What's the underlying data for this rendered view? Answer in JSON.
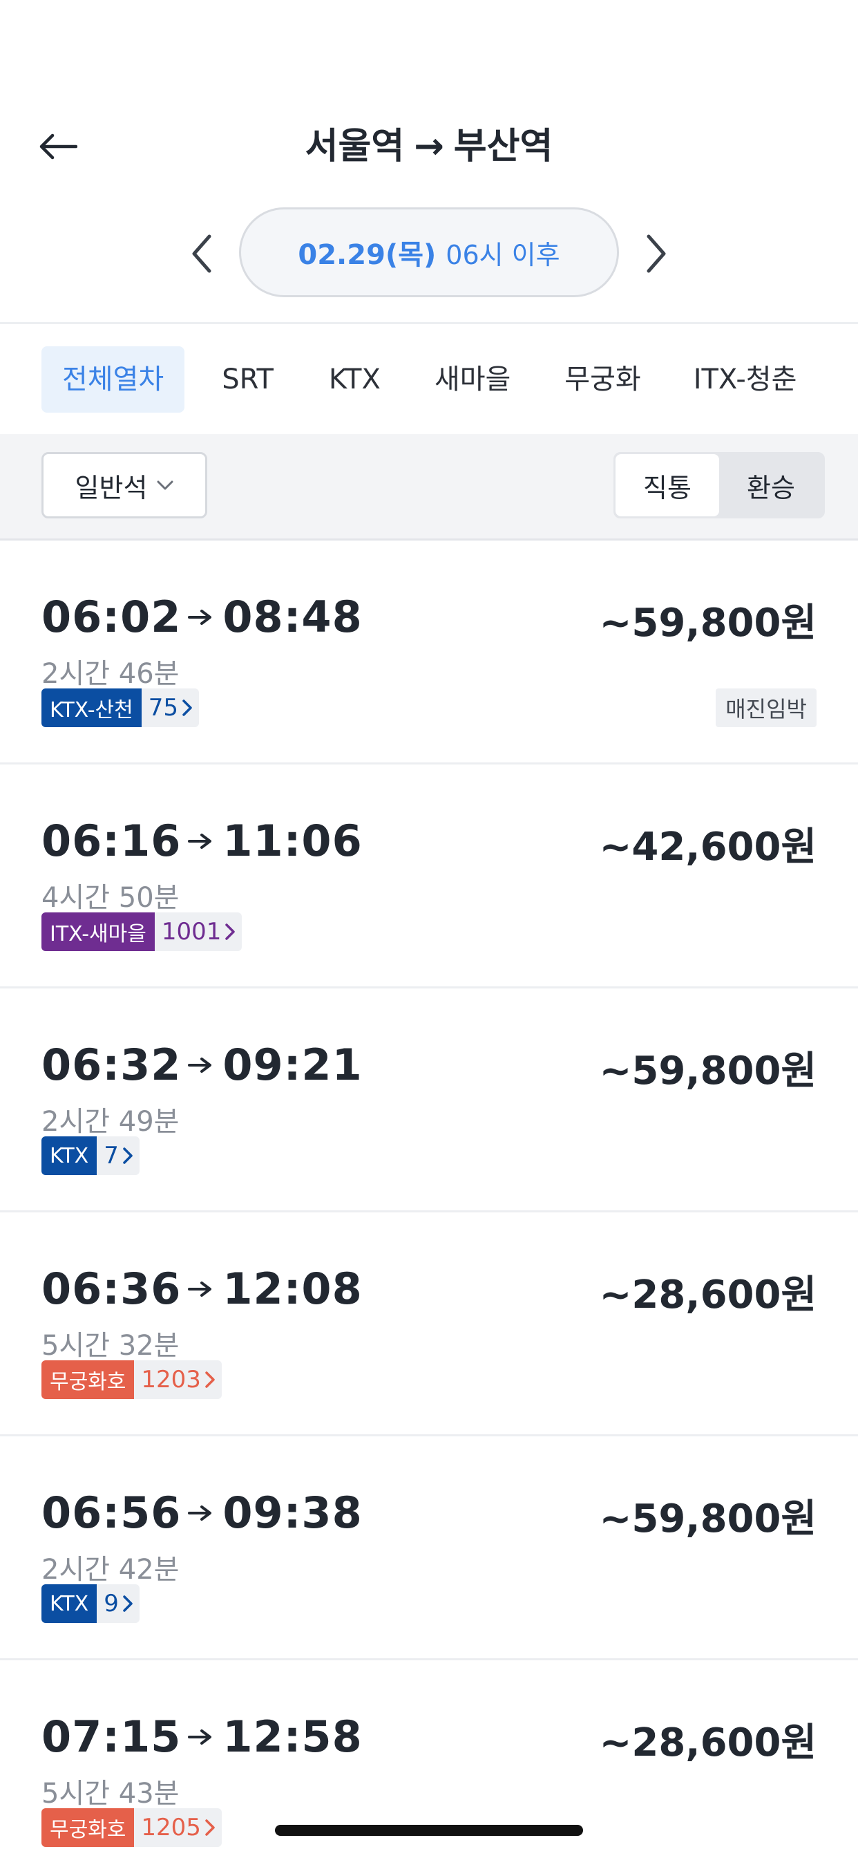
{
  "header": {
    "from": "서울역",
    "arrow": "→",
    "to": "부산역"
  },
  "date": {
    "date_label": "02.29(목)",
    "after_label": "06시 이후"
  },
  "tabs": [
    {
      "label": "전체열차",
      "active": true
    },
    {
      "label": "SRT"
    },
    {
      "label": "KTX"
    },
    {
      "label": "새마을"
    },
    {
      "label": "무궁화"
    },
    {
      "label": "ITX-청춘"
    }
  ],
  "filters": {
    "seat_class": "일반석",
    "segment": [
      {
        "label": "직통",
        "selected": true
      },
      {
        "label": "환승"
      }
    ]
  },
  "trains": [
    {
      "dep": "06:02",
      "arr": "08:48",
      "duration": "2시간 46분",
      "price": "~59,800원",
      "type": "KTX-산천",
      "number": "75",
      "type_color": "#0b4ea2",
      "num_color": "#0b4ea2",
      "status": "매진임박"
    },
    {
      "dep": "06:16",
      "arr": "11:06",
      "duration": "4시간 50분",
      "price": "~42,600원",
      "type": "ITX-새마을",
      "number": "1001",
      "type_color": "#6f2d91",
      "num_color": "#6f2d91",
      "status": ""
    },
    {
      "dep": "06:32",
      "arr": "09:21",
      "duration": "2시간 49분",
      "price": "~59,800원",
      "type": "KTX",
      "number": "7",
      "type_color": "#0b4ea2",
      "num_color": "#0b4ea2",
      "status": ""
    },
    {
      "dep": "06:36",
      "arr": "12:08",
      "duration": "5시간 32분",
      "price": "~28,600원",
      "type": "무궁화호",
      "number": "1203",
      "type_color": "#e5604a",
      "num_color": "#e5604a",
      "status": ""
    },
    {
      "dep": "06:56",
      "arr": "09:38",
      "duration": "2시간 42분",
      "price": "~59,800원",
      "type": "KTX",
      "number": "9",
      "type_color": "#0b4ea2",
      "num_color": "#0b4ea2",
      "status": ""
    },
    {
      "dep": "07:15",
      "arr": "12:58",
      "duration": "5시간 43분",
      "price": "~28,600원",
      "type": "무궁화호",
      "number": "1205",
      "type_color": "#e5604a",
      "num_color": "#e5604a",
      "status": ""
    }
  ]
}
